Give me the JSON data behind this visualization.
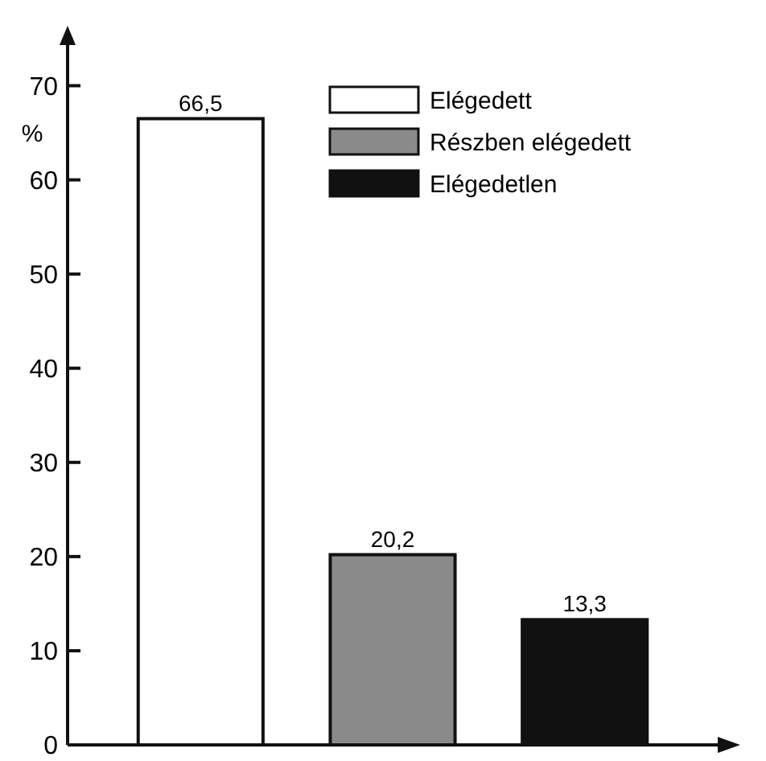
{
  "chart_data": {
    "type": "bar",
    "ylabel": "%",
    "categories": [
      null,
      null,
      null
    ],
    "series": [
      {
        "name": "Elégedett",
        "color": "#ffffff",
        "values": [
          66.5,
          null,
          null
        ],
        "value_labels": [
          "66,5",
          null,
          null
        ]
      },
      {
        "name": "Részben elégedett",
        "color": "#8a8a8a",
        "values": [
          null,
          20.2,
          null
        ],
        "value_labels": [
          null,
          "20,2",
          null
        ]
      },
      {
        "name": "Elégedetlen",
        "color": "#111111",
        "values": [
          null,
          null,
          13.3
        ],
        "value_labels": [
          null,
          null,
          "13,3"
        ]
      }
    ],
    "ylim": [
      0,
      75
    ],
    "yticks": [
      0,
      10,
      20,
      30,
      40,
      50,
      60,
      70
    ],
    "legend": "top right",
    "grid": false
  }
}
